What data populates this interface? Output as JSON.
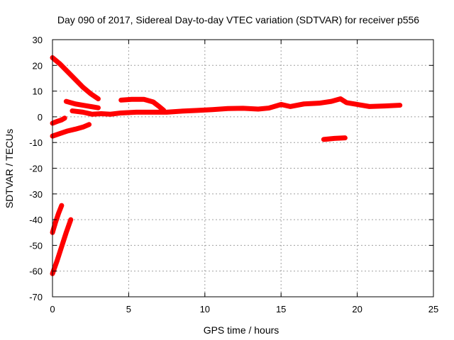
{
  "chart_data": {
    "type": "scatter",
    "title": "Day 090 of 2017, Sidereal Day-to-day VTEC variation (SDTVAR) for receiver p556",
    "xlabel": "GPS time / hours",
    "ylabel": "SDTVAR / TECUs",
    "xlim": [
      0,
      25
    ],
    "ylim": [
      -70,
      30
    ],
    "xticks": [
      "0",
      "5",
      "10",
      "15",
      "20",
      "25"
    ],
    "yticks": [
      "-70",
      "-60",
      "-50",
      "-40",
      "-30",
      "-20",
      "-10",
      "0",
      "10",
      "20",
      "30"
    ],
    "grid": true,
    "marker_color": "#ff0000",
    "tracks": [
      {
        "points": [
          [
            0.0,
            23.0
          ],
          [
            0.5,
            20.5
          ],
          [
            1.0,
            17.5
          ],
          [
            1.5,
            14.5
          ],
          [
            2.0,
            11.5
          ],
          [
            2.5,
            9.0
          ],
          [
            3.0,
            7.0
          ]
        ]
      },
      {
        "points": [
          [
            0.0,
            -2.5
          ],
          [
            0.3,
            -1.8
          ],
          [
            0.6,
            -1.2
          ],
          [
            0.8,
            -0.5
          ]
        ]
      },
      {
        "points": [
          [
            0.0,
            -7.5
          ],
          [
            0.5,
            -6.5
          ],
          [
            1.0,
            -5.5
          ],
          [
            1.5,
            -4.8
          ],
          [
            2.0,
            -4.0
          ],
          [
            2.4,
            -3.0
          ]
        ]
      },
      {
        "points": [
          [
            0.0,
            -45.0
          ],
          [
            0.2,
            -41.0
          ],
          [
            0.4,
            -37.5
          ],
          [
            0.6,
            -34.5
          ]
        ]
      },
      {
        "points": [
          [
            0.0,
            -61.0
          ],
          [
            0.3,
            -56.0
          ],
          [
            0.6,
            -50.5
          ],
          [
            0.9,
            -45.0
          ],
          [
            1.2,
            -40.0
          ]
        ]
      },
      {
        "points": [
          [
            0.9,
            6.0
          ],
          [
            1.5,
            5.0
          ],
          [
            2.0,
            4.5
          ],
          [
            2.5,
            4.0
          ],
          [
            3.0,
            3.5
          ]
        ]
      },
      {
        "points": [
          [
            1.3,
            2.3
          ],
          [
            2.0,
            1.8
          ],
          [
            2.6,
            1.0
          ],
          [
            3.2,
            1.2
          ],
          [
            3.8,
            1.0
          ],
          [
            4.5,
            1.5
          ],
          [
            5.5,
            1.8
          ],
          [
            6.5,
            1.8
          ],
          [
            7.5,
            1.8
          ],
          [
            8.5,
            2.2
          ],
          [
            9.5,
            2.5
          ],
          [
            10.5,
            2.8
          ],
          [
            11.5,
            3.2
          ],
          [
            12.5,
            3.3
          ],
          [
            13.5,
            3.0
          ],
          [
            14.2,
            3.4
          ],
          [
            15.0,
            4.8
          ],
          [
            15.6,
            4.0
          ],
          [
            16.5,
            5.0
          ],
          [
            17.5,
            5.3
          ],
          [
            18.3,
            6.0
          ],
          [
            18.9,
            7.0
          ],
          [
            19.3,
            5.5
          ],
          [
            20.0,
            4.8
          ],
          [
            20.8,
            4.0
          ],
          [
            21.8,
            4.2
          ],
          [
            22.8,
            4.5
          ]
        ]
      },
      {
        "points": [
          [
            4.5,
            6.5
          ],
          [
            5.2,
            6.8
          ],
          [
            6.0,
            6.8
          ],
          [
            6.6,
            5.8
          ],
          [
            7.0,
            4.0
          ],
          [
            7.3,
            2.5
          ]
        ]
      },
      {
        "points": [
          [
            17.8,
            -8.8
          ],
          [
            18.5,
            -8.4
          ],
          [
            19.2,
            -8.2
          ]
        ]
      }
    ]
  }
}
